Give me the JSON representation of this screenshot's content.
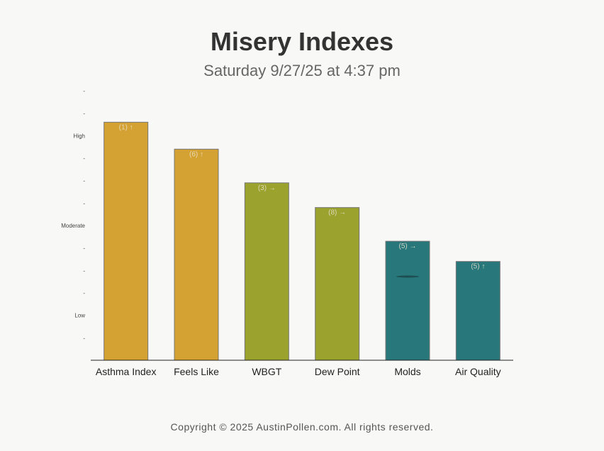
{
  "header": {
    "title": "Misery Indexes",
    "subtitle": "Saturday 9/27/25 at 4:37 pm"
  },
  "footer": {
    "copyright": "Copyright © 2025 AustinPollen.com.  All rights reserved."
  },
  "chart_data": {
    "type": "bar",
    "categories": [
      "Asthma Index",
      "Feels Like",
      "WBGT",
      "Dew Point",
      "Molds",
      "Air Quality"
    ],
    "values": [
      10.6,
      9.4,
      7.9,
      6.8,
      5.3,
      4.4
    ],
    "bar_labels": [
      "(1) ↑",
      "(6) ↑",
      "(3) →",
      "(8) →",
      "(5) →",
      "(5) ↑"
    ],
    "bar_colors": [
      "#d4a232",
      "#d4a232",
      "#9ba22e",
      "#9ba22e",
      "#28777a",
      "#28777a"
    ],
    "ylim": [
      0,
      12
    ],
    "yticks": [
      {
        "value": 1,
        "label": "-"
      },
      {
        "value": 2,
        "label": "Low"
      },
      {
        "value": 3,
        "label": "-"
      },
      {
        "value": 4,
        "label": "-"
      },
      {
        "value": 5,
        "label": "-"
      },
      {
        "value": 6,
        "label": "Moderate"
      },
      {
        "value": 7,
        "label": "-"
      },
      {
        "value": 8,
        "label": "-"
      },
      {
        "value": 9,
        "label": "-"
      },
      {
        "value": 10,
        "label": "High"
      },
      {
        "value": 11,
        "label": "-"
      },
      {
        "value": 12,
        "label": "-"
      }
    ],
    "grid": false,
    "xlabel": "",
    "ylabel": ""
  }
}
